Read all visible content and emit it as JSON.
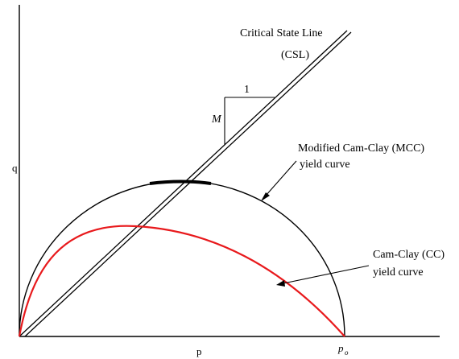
{
  "labels": {
    "csl_line1": "Critical State Line",
    "csl_line2": "(CSL)",
    "slope_run": "1",
    "slope_rise": "M",
    "mcc_line1": "Modified Cam-Clay (MCC)",
    "mcc_line2": "yield curve",
    "cc_line1": "Cam-Clay (CC)",
    "cc_line2": "yield curve",
    "y_axis": "q",
    "x_axis": "p",
    "p0_main": "p",
    "p0_sub": "o"
  },
  "colors": {
    "axes": "#000000",
    "mcc_curve": "#000000",
    "cc_curve": "#e8191c",
    "csl": "#000000"
  }
}
